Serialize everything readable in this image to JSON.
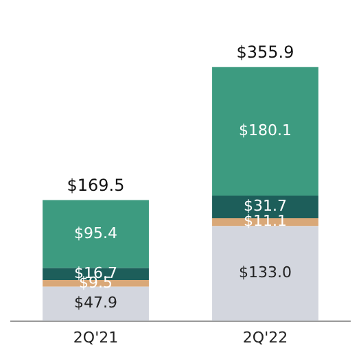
{
  "chart_data": {
    "type": "bar",
    "stacked": true,
    "categories": [
      "2Q'21",
      "2Q'22"
    ],
    "series": [
      {
        "color": "#d3d6de",
        "values": [
          47.9,
          133.0
        ],
        "value_labels": [
          "$47.9",
          "$133.0"
        ]
      },
      {
        "color": "#d9a878",
        "values": [
          9.5,
          11.1
        ],
        "value_labels": [
          "$9.5",
          "$11.1"
        ]
      },
      {
        "color": "#1d5e5a",
        "values": [
          16.7,
          31.7
        ],
        "value_labels": [
          "$16.7",
          "$31.7"
        ]
      },
      {
        "color": "#3d9b80",
        "values": [
          95.4,
          180.1
        ],
        "value_labels": [
          "$95.4",
          "$180.1"
        ]
      }
    ],
    "totals": [
      "$169.5",
      "$355.9"
    ],
    "legend": false,
    "grid": false
  }
}
